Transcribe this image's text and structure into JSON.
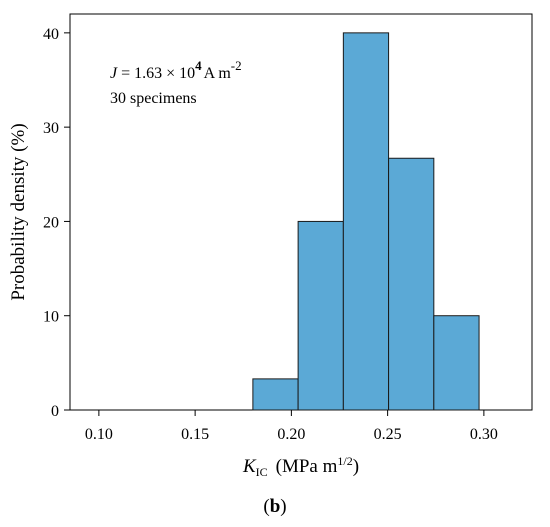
{
  "chart_data": {
    "type": "bar",
    "subtype": "histogram",
    "bins": [
      {
        "start": 0.18,
        "end": 0.2035,
        "value": 3.3
      },
      {
        "start": 0.2035,
        "end": 0.227,
        "value": 20.0
      },
      {
        "start": 0.227,
        "end": 0.2505,
        "value": 40.0
      },
      {
        "start": 0.2505,
        "end": 0.274,
        "value": 26.7
      },
      {
        "start": 0.274,
        "end": 0.2975,
        "value": 10.0
      }
    ],
    "xlabel": {
      "symbol": "K",
      "subscript": "IC",
      "units_pre": "(MPa m",
      "units_sup": "1/2",
      "units_post": ")"
    },
    "ylabel": "Probability density (%)",
    "xlim": [
      0.085,
      0.325
    ],
    "ylim": [
      0,
      42
    ],
    "xticks": [
      0.1,
      0.15,
      0.2,
      0.25,
      0.3
    ],
    "xtick_labels": [
      "0.10",
      "0.15",
      "0.20",
      "0.25",
      "0.30"
    ],
    "yticks": [
      0,
      10,
      20,
      30,
      40
    ],
    "ytick_labels": [
      "0",
      "10",
      "20",
      "30",
      "40"
    ],
    "grid": false,
    "bar_color": "#5ba9d6",
    "annotation": {
      "line1": {
        "symbol": "J",
        "eq": " = 1.63 × 10",
        "exp": "4",
        "unit": "A m",
        "unit_exp": "-2"
      },
      "line2": "30 specimens"
    },
    "panel_label": {
      "open": "(",
      "letter": "b",
      "close": ")"
    }
  }
}
